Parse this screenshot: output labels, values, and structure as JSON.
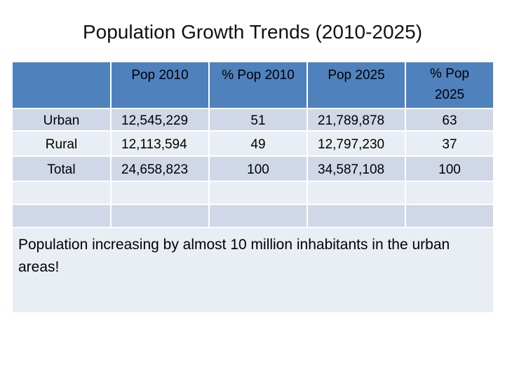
{
  "title": "Population Growth Trends (2010-2025)",
  "table": {
    "headers": [
      "",
      "Pop 2010",
      "% Pop 2010",
      "Pop 2025",
      "% Pop 2025"
    ],
    "rows": [
      [
        "Urban",
        "12,545,229",
        "51",
        "21,789,878",
        "63"
      ],
      [
        "Rural",
        "12,113,594",
        "49",
        "12,797,230",
        "37"
      ],
      [
        "Total",
        "24,658,823",
        "100",
        "34,587,108",
        "100"
      ]
    ],
    "note": "Population increasing by almost 10 million inhabitants in the urban areas!"
  },
  "colors": {
    "header_fill": "#4f81bd",
    "row_dark": "#d0d8e8",
    "row_light": "#e9edf4"
  }
}
